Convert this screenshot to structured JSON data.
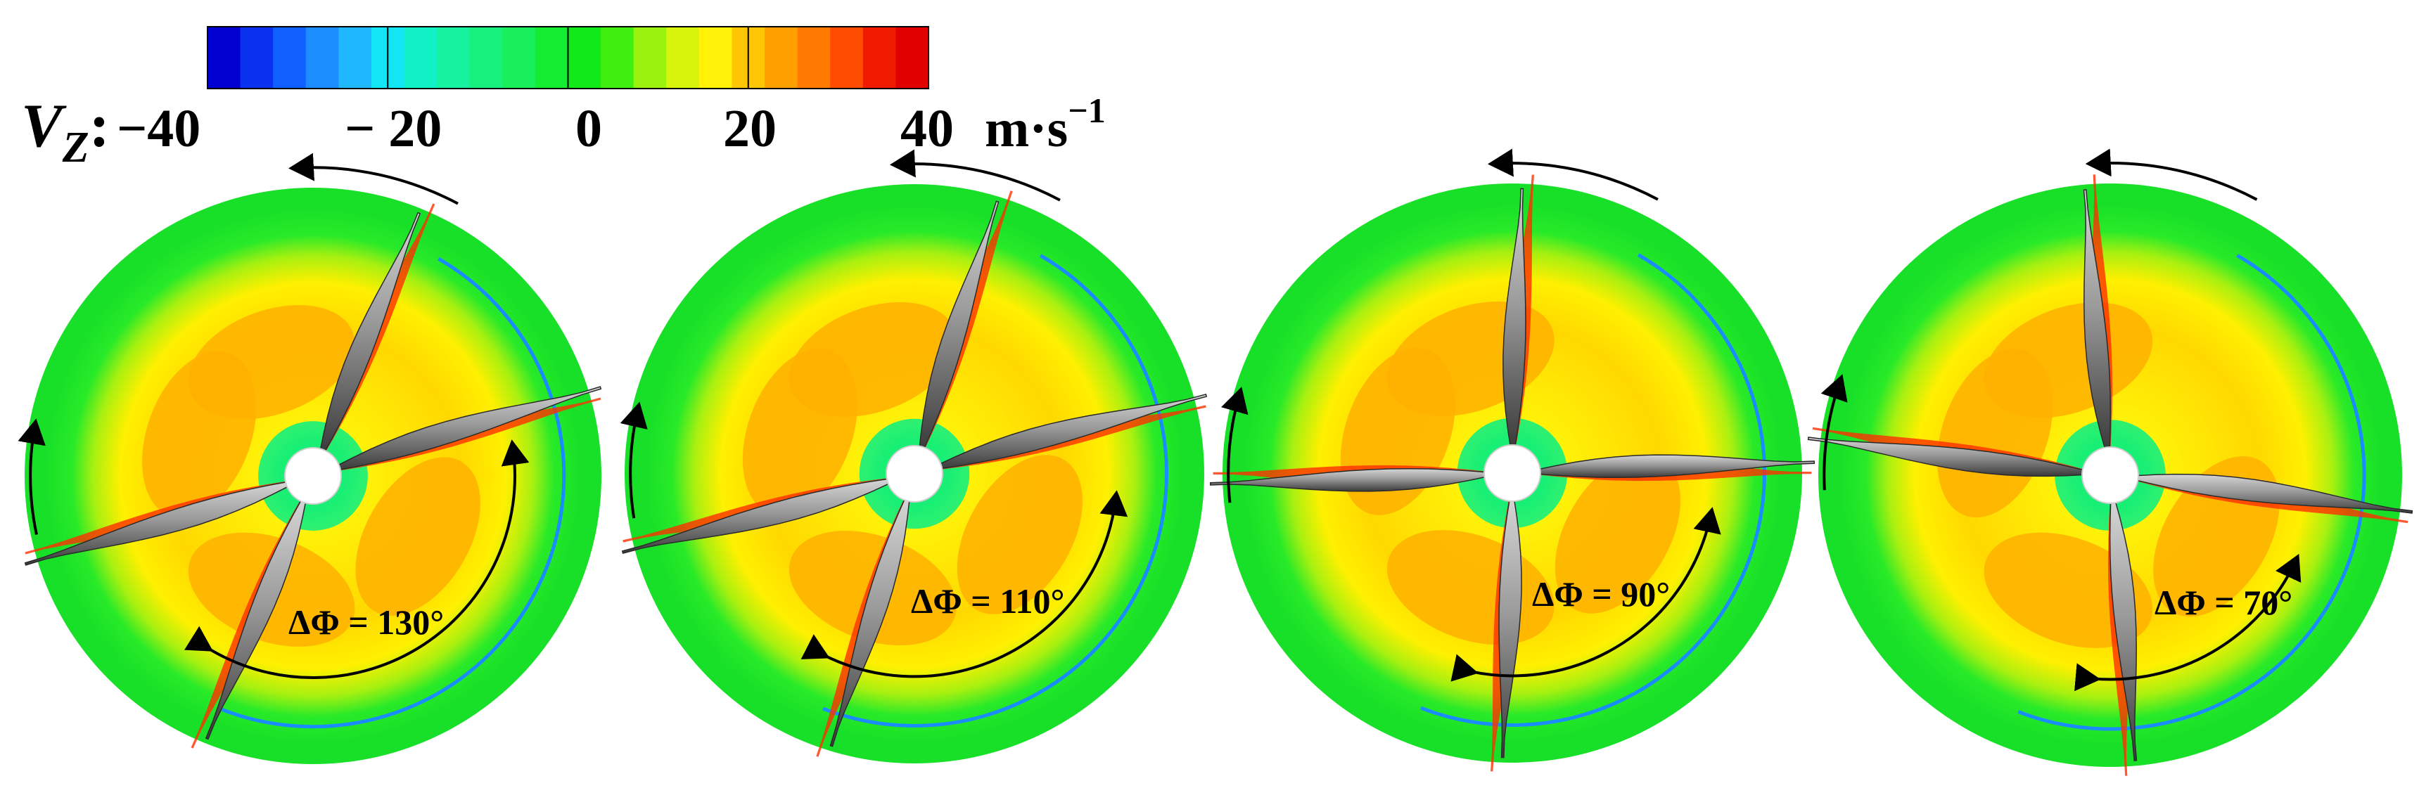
{
  "legend": {
    "variable_letter": "V",
    "variable_subscript": "Z",
    "variable_colon": ":",
    "tick_labels": [
      "−40",
      "− 20",
      "0",
      "20",
      "40"
    ],
    "unit_main": "m·s",
    "unit_exponent": "−1",
    "range": [
      -40,
      40
    ],
    "colors": [
      "#0000d0",
      "#0a30f0",
      "#1060ff",
      "#1b8dff",
      "#1fb8ff",
      "#12e6f5",
      "#12f0c6",
      "#16f2a0",
      "#17f07c",
      "#19ef5a",
      "#13ec30",
      "#11ea18",
      "#40ee10",
      "#9af20e",
      "#d8f40c",
      "#fff208",
      "#ffc606",
      "#ffa000",
      "#ff7a00",
      "#ff4c00",
      "#f01a00",
      "#e00000"
    ]
  },
  "panels": [
    {
      "delta_phi_label": "ΔΦ = 130°",
      "delta_phi_deg": 130
    },
    {
      "delta_phi_label": "ΔΦ = 110°",
      "delta_phi_deg": 110
    },
    {
      "delta_phi_label": "ΔΦ = 90°",
      "delta_phi_deg": 90
    },
    {
      "delta_phi_label": "ΔΦ = 70°",
      "delta_phi_deg": 70
    }
  ]
}
